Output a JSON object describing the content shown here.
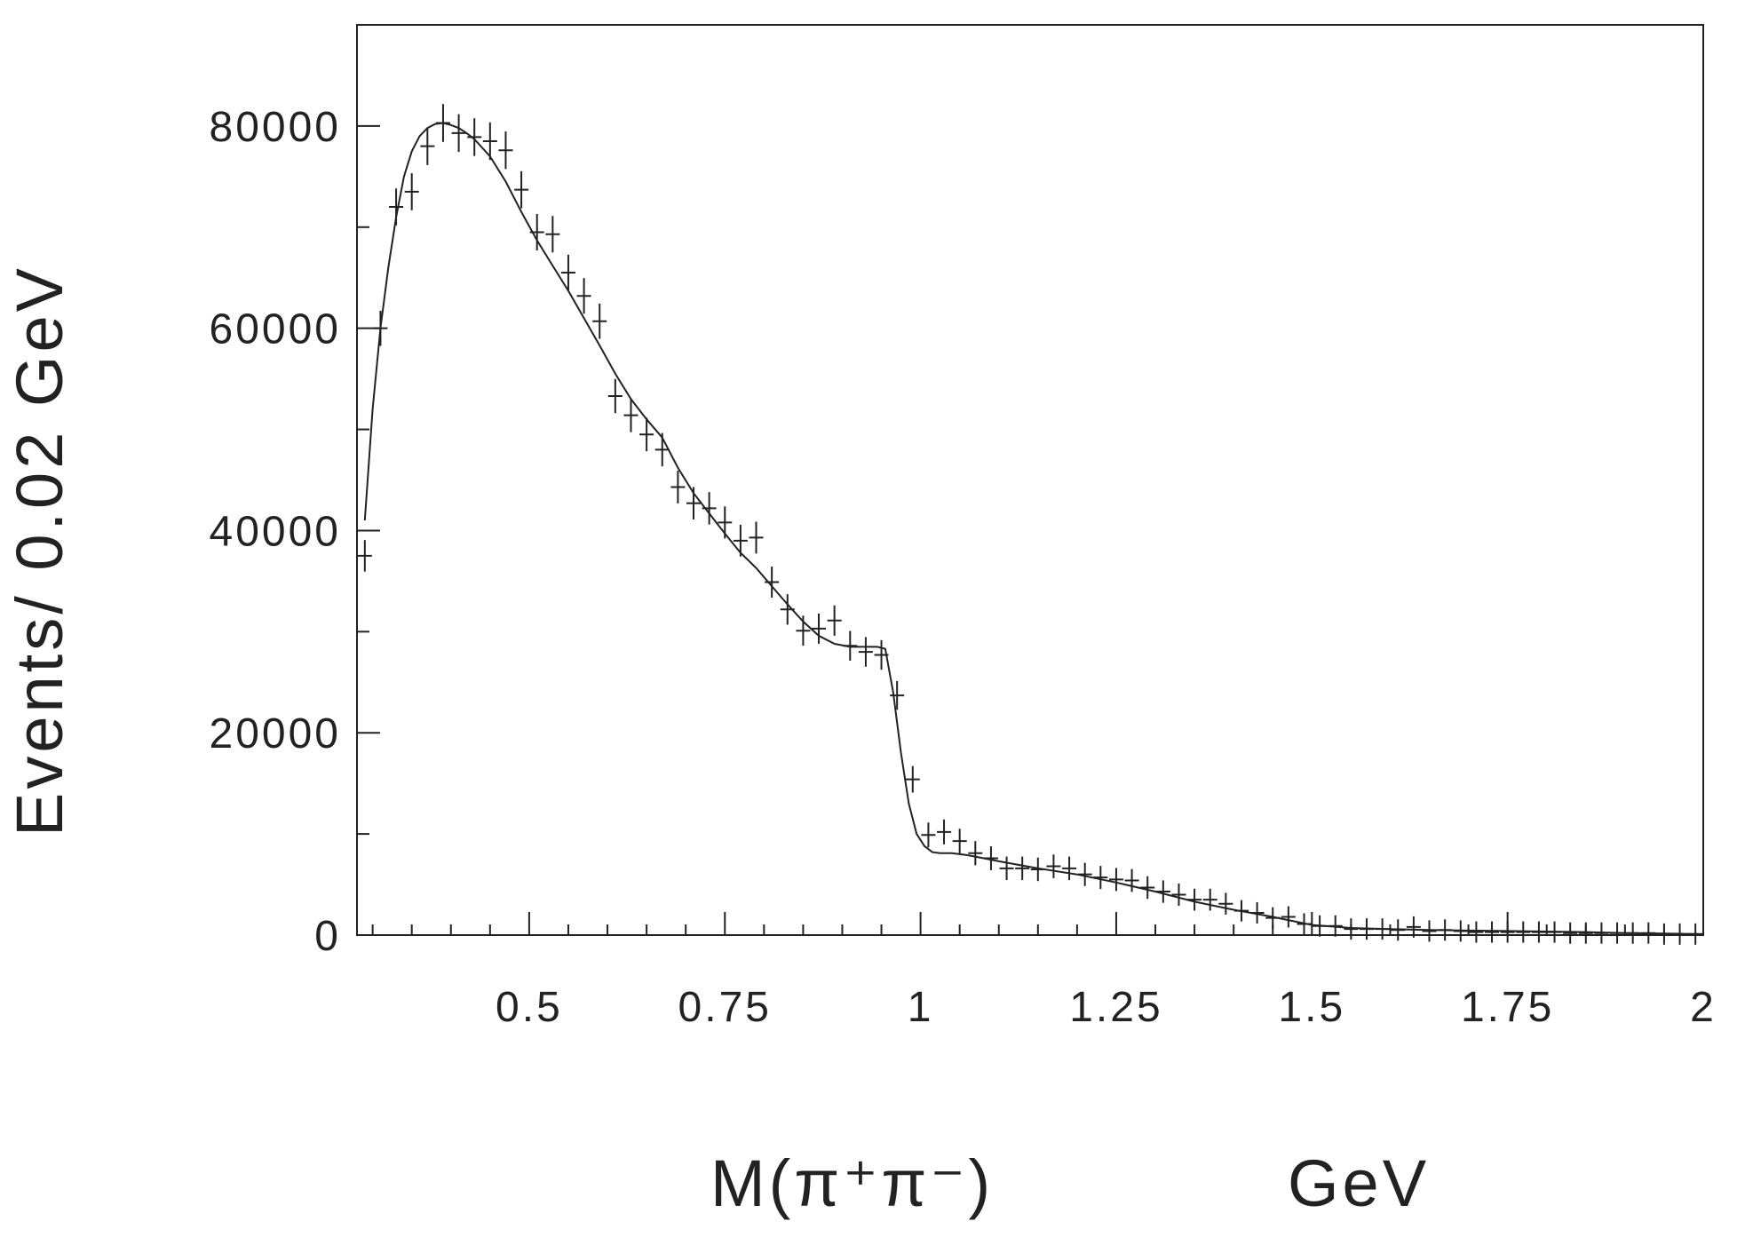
{
  "chart_data": {
    "type": "scatter",
    "xlabel": "M(π⁺π⁻)",
    "xunit": "GeV",
    "ylabel": "Events/ 0.02 GeV",
    "xlim": [
      0.28,
      2.0
    ],
    "ylim": [
      0,
      90000
    ],
    "x_ticks": [
      0.5,
      0.75,
      1,
      1.25,
      1.5,
      1.75,
      2
    ],
    "x_tick_labels": [
      "0.5",
      "0.75",
      "1",
      "1.25",
      "1.5",
      "1.75",
      "2"
    ],
    "y_ticks": [
      0,
      20000,
      40000,
      60000,
      80000
    ],
    "y_tick_labels": [
      "0",
      "20000",
      "40000",
      "60000",
      "80000"
    ],
    "grid": false,
    "series": [
      {
        "kind": "points",
        "x": [
          0.29,
          0.31,
          0.33,
          0.35,
          0.37,
          0.39,
          0.41,
          0.43,
          0.45,
          0.47,
          0.49,
          0.51,
          0.53,
          0.55,
          0.57,
          0.59,
          0.61,
          0.63,
          0.65,
          0.67,
          0.69,
          0.71,
          0.73,
          0.75,
          0.77,
          0.79,
          0.81,
          0.83,
          0.85,
          0.87,
          0.89,
          0.91,
          0.93,
          0.95,
          0.97,
          0.99,
          1.01,
          1.03,
          1.05,
          1.07,
          1.09,
          1.11,
          1.13,
          1.15,
          1.17,
          1.19,
          1.21,
          1.23,
          1.25,
          1.27,
          1.29,
          1.31,
          1.33,
          1.35,
          1.37,
          1.39,
          1.41,
          1.43,
          1.45,
          1.47,
          1.49,
          1.51,
          1.53,
          1.55,
          1.57,
          1.59,
          1.61,
          1.63,
          1.65,
          1.67,
          1.69,
          1.71,
          1.73,
          1.75,
          1.77,
          1.79,
          1.81,
          1.83,
          1.85,
          1.87,
          1.89,
          1.91,
          1.93,
          1.95,
          1.97,
          1.99
        ],
        "y": [
          37500,
          60000,
          72000,
          73500,
          78000,
          80300,
          79300,
          78900,
          78500,
          77600,
          73700,
          69500,
          69300,
          65500,
          63200,
          60700,
          53300,
          51400,
          49500,
          48000,
          44300,
          42700,
          42200,
          40800,
          39000,
          39300,
          34900,
          32200,
          30100,
          30300,
          31100,
          28600,
          28000,
          27700,
          23700,
          15400,
          9900,
          10200,
          9300,
          8100,
          7600,
          6600,
          6600,
          6500,
          6800,
          6600,
          6000,
          5700,
          5500,
          5400,
          4700,
          4300,
          4000,
          3500,
          3500,
          3100,
          2400,
          2200,
          1700,
          1800,
          1100,
          900,
          900,
          600,
          600,
          600,
          500,
          800,
          400,
          500,
          400,
          300,
          300,
          300,
          300,
          300,
          300,
          200,
          200,
          200,
          200,
          200,
          200,
          100,
          100,
          100
        ]
      },
      {
        "kind": "curve",
        "x": [
          0.29,
          0.3,
          0.31,
          0.32,
          0.33,
          0.34,
          0.35,
          0.36,
          0.37,
          0.38,
          0.39,
          0.4,
          0.41,
          0.42,
          0.43,
          0.45,
          0.47,
          0.49,
          0.51,
          0.53,
          0.55,
          0.57,
          0.59,
          0.61,
          0.63,
          0.65,
          0.67,
          0.69,
          0.71,
          0.73,
          0.75,
          0.77,
          0.79,
          0.81,
          0.83,
          0.85,
          0.87,
          0.89,
          0.91,
          0.93,
          0.945,
          0.955,
          0.965,
          0.975,
          0.985,
          0.995,
          1.005,
          1.015,
          1.025,
          1.04,
          1.06,
          1.08,
          1.1,
          1.15,
          1.2,
          1.25,
          1.3,
          1.35,
          1.4,
          1.45,
          1.5,
          1.55,
          1.6,
          1.65,
          1.7,
          1.75,
          1.8,
          1.85,
          1.9,
          1.95,
          2.0
        ],
        "y": [
          41000,
          52000,
          60000,
          66000,
          71000,
          75000,
          77500,
          79000,
          79800,
          80200,
          80300,
          80100,
          79800,
          79300,
          78700,
          77000,
          74500,
          71500,
          68700,
          66200,
          63700,
          61000,
          58300,
          55500,
          53000,
          51000,
          49200,
          46200,
          43700,
          41700,
          39700,
          37800,
          36300,
          34500,
          32700,
          31000,
          29600,
          28800,
          28500,
          28500,
          28500,
          28300,
          24000,
          18000,
          13000,
          10000,
          8800,
          8200,
          8100,
          8100,
          7900,
          7600,
          7300,
          6600,
          6000,
          5200,
          4300,
          3300,
          2500,
          1800,
          1000,
          700,
          600,
          500,
          450,
          400,
          350,
          300,
          200,
          150,
          100
        ]
      }
    ]
  }
}
